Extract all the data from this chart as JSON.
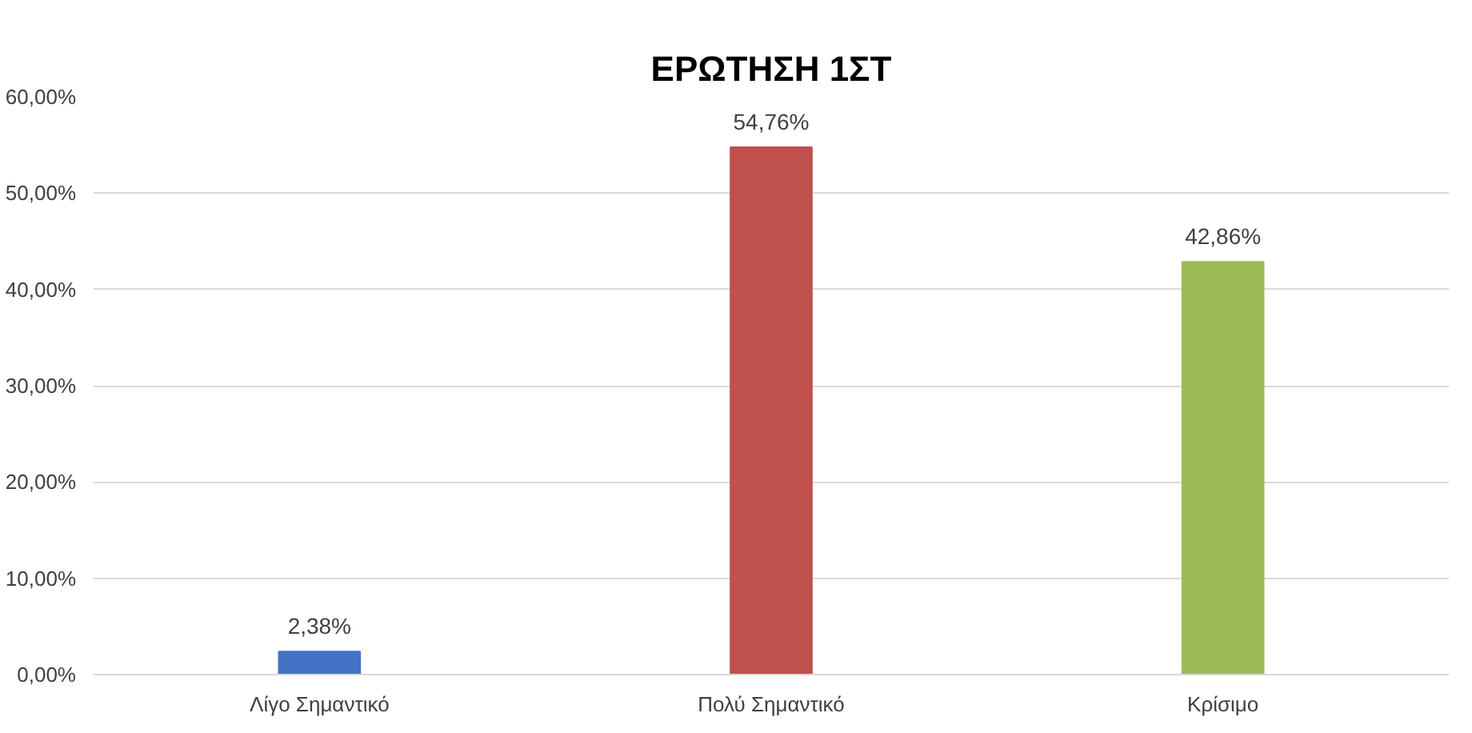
{
  "chart_data": {
    "type": "bar",
    "title": "ΕΡΩΤΗΣΗ 1ΣΤ",
    "categories": [
      "Λίγο Σημαντικό",
      "Πολύ Σημαντικό",
      "Κρίσιμο"
    ],
    "values": [
      2.38,
      54.76,
      42.86
    ],
    "colors": [
      "#4472c4",
      "#c0504d",
      "#9bbb59"
    ],
    "value_labels": [
      "2,38%",
      "54,76%",
      "42,86%"
    ],
    "ylim": [
      0,
      60
    ],
    "yticks": [
      {
        "value": 0,
        "label": "0,00%"
      },
      {
        "value": 10,
        "label": "10,00%"
      },
      {
        "value": 20,
        "label": "20,00%"
      },
      {
        "value": 30,
        "label": "30,00%"
      },
      {
        "value": 40,
        "label": "40,00%"
      },
      {
        "value": 50,
        "label": "50,00%"
      },
      {
        "value": 60,
        "label": "60,00%"
      }
    ],
    "grid": "y"
  }
}
